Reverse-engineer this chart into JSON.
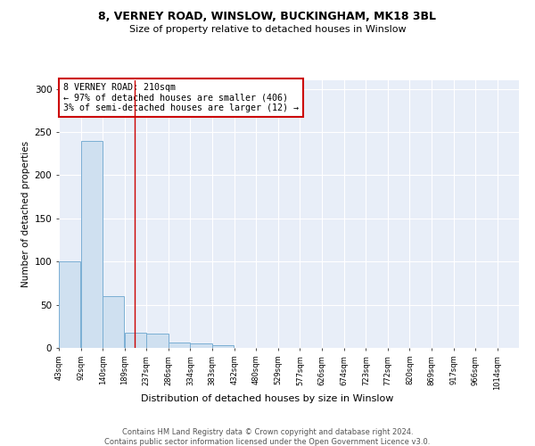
{
  "title_line1": "8, VERNEY ROAD, WINSLOW, BUCKINGHAM, MK18 3BL",
  "title_line2": "Size of property relative to detached houses in Winslow",
  "xlabel": "Distribution of detached houses by size in Winslow",
  "ylabel": "Number of detached properties",
  "footer_line1": "Contains HM Land Registry data © Crown copyright and database right 2024.",
  "footer_line2": "Contains public sector information licensed under the Open Government Licence v3.0.",
  "bins": [
    43,
    92,
    140,
    189,
    237,
    286,
    334,
    383,
    432,
    480,
    529,
    577,
    626,
    674,
    723,
    772,
    820,
    869,
    917,
    966,
    1014
  ],
  "values": [
    100,
    240,
    60,
    18,
    17,
    6,
    5,
    3,
    0,
    0,
    0,
    0,
    0,
    0,
    0,
    0,
    0,
    0,
    0,
    0
  ],
  "property_size": 210,
  "annotation_line1": "8 VERNEY ROAD: 210sqm",
  "annotation_line2": "← 97% of detached houses are smaller (406)",
  "annotation_line3": "3% of semi-detached houses are larger (12) →",
  "bar_color": "#cfe0f0",
  "bar_edge_color": "#7bafd4",
  "vline_color": "#cc0000",
  "annotation_box_edge_color": "#cc0000",
  "background_color": "#e8eef8",
  "ylim": [
    0,
    310
  ],
  "yticks": [
    0,
    50,
    100,
    150,
    200,
    250,
    300
  ],
  "bin_labels": [
    "43sqm",
    "92sqm",
    "140sqm",
    "189sqm",
    "237sqm",
    "286sqm",
    "334sqm",
    "383sqm",
    "432sqm",
    "480sqm",
    "529sqm",
    "577sqm",
    "626sqm",
    "674sqm",
    "723sqm",
    "772sqm",
    "820sqm",
    "869sqm",
    "917sqm",
    "966sqm",
    "1014sqm"
  ]
}
